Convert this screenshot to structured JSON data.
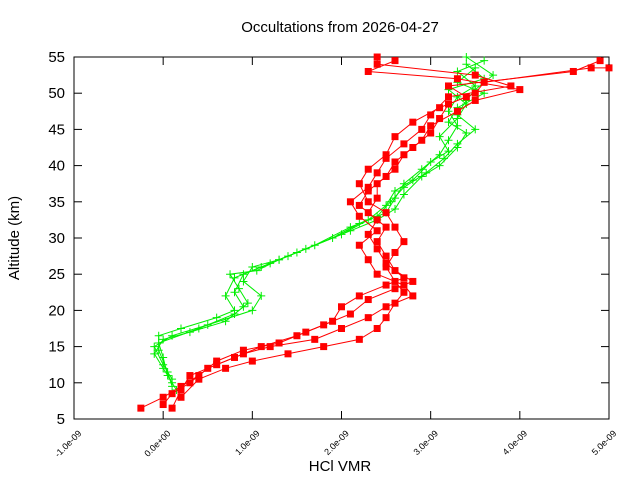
{
  "chart_data": {
    "type": "line",
    "title": "Occultations from 2026-04-27",
    "xlabel": "HCl VMR",
    "ylabel": "Altitude (km)",
    "xlim": [
      -1e-09,
      5e-09
    ],
    "ylim": [
      5,
      55
    ],
    "x_ticks": [
      -1e-09,
      0,
      1e-09,
      2e-09,
      3e-09,
      4e-09,
      5e-09
    ],
    "x_tick_labels": [
      "-1.0e-09",
      "0.0e+00",
      "1.0e-09",
      "2.0e-09",
      "3.0e-09",
      "4.0e-09",
      "5.0e-09"
    ],
    "y_ticks": [
      5,
      10,
      15,
      20,
      25,
      30,
      35,
      40,
      45,
      50,
      55
    ],
    "y_tick_labels": [
      "5",
      "10",
      "15",
      "20",
      "25",
      "30",
      "35",
      "40",
      "45",
      "50",
      "55"
    ],
    "grid": false,
    "legend": "none",
    "series": [
      {
        "color": "#00ee00",
        "marker": "plus",
        "profiles": [
          [
            [
              1e-10,
              9.5
            ],
            [
              5e-11,
              11.5
            ],
            [
              -5e-11,
              14.5
            ],
            [
              -5e-11,
              16.5
            ],
            [
              2e-10,
              17.5
            ],
            [
              6e-10,
              19.0
            ],
            [
              8e-10,
              20.0
            ],
            [
              7e-10,
              22.0
            ],
            [
              8e-10,
              24.5
            ],
            [
              1.1e-09,
              26.0
            ],
            [
              1.4e-09,
              27.5
            ],
            [
              1.9e-09,
              30.0
            ],
            [
              2.2e-09,
              32.0
            ],
            [
              2.5e-09,
              33.5
            ],
            [
              2.6e-09,
              35.5
            ],
            [
              2.7e-09,
              37.5
            ],
            [
              2.9e-09,
              39.5
            ],
            [
              3.1e-09,
              41.5
            ],
            [
              3.2e-09,
              43.5
            ],
            [
              3.3e-09,
              45.5
            ],
            [
              3.2e-09,
              47.5
            ],
            [
              3.3e-09,
              49.5
            ],
            [
              3.5e-09,
              51.0
            ],
            [
              3.3e-09,
              53.0
            ],
            [
              3.6e-09,
              54.5
            ]
          ],
          [
            [
              1e-10,
              10.0
            ],
            [
              0.0,
              12.0
            ],
            [
              -1e-10,
              14.0
            ],
            [
              0.0,
              16.0
            ],
            [
              3e-10,
              17.0
            ],
            [
              7e-10,
              18.5
            ],
            [
              9e-10,
              20.5
            ],
            [
              8e-10,
              22.5
            ],
            [
              9e-10,
              25.0
            ],
            [
              1.2e-09,
              26.5
            ],
            [
              1.5e-09,
              28.0
            ],
            [
              2e-09,
              30.5
            ],
            [
              2.3e-09,
              32.5
            ],
            [
              2.5e-09,
              34.5
            ],
            [
              2.6e-09,
              36.5
            ],
            [
              2.8e-09,
              38.0
            ],
            [
              3e-09,
              40.5
            ],
            [
              3.2e-09,
              42.0
            ],
            [
              3.1e-09,
              44.0
            ],
            [
              3.3e-09,
              46.5
            ],
            [
              3.4e-09,
              48.5
            ],
            [
              3.2e-09,
              50.5
            ],
            [
              3.6e-09,
              52.0
            ],
            [
              3.4e-09,
              54.0
            ]
          ],
          [
            [
              1.5e-10,
              9.0
            ],
            [
              5e-11,
              11.0
            ],
            [
              0.0,
              13.5
            ],
            [
              -5e-11,
              15.5
            ],
            [
              4e-10,
              17.5
            ],
            [
              8e-10,
              19.5
            ],
            [
              9.5e-10,
              21.0
            ],
            [
              8.5e-10,
              23.0
            ],
            [
              7.5e-10,
              25.0
            ],
            [
              1.05e-09,
              25.5
            ],
            [
              1.3e-09,
              27.0
            ],
            [
              1.7e-09,
              29.0
            ],
            [
              2.1e-09,
              31.5
            ],
            [
              2.4e-09,
              33.0
            ],
            [
              2.55e-09,
              35.0
            ],
            [
              2.7e-09,
              37.0
            ],
            [
              2.95e-09,
              39.0
            ],
            [
              3.15e-09,
              41.0
            ],
            [
              3.3e-09,
              43.0
            ],
            [
              3.5e-09,
              45.0
            ],
            [
              3.3e-09,
              47.0
            ],
            [
              3.4e-09,
              49.0
            ],
            [
              3.5e-09,
              50.5
            ],
            [
              3.7e-09,
              52.5
            ],
            [
              3.4e-09,
              55.0
            ]
          ],
          [
            [
              1e-10,
              10.5
            ],
            [
              0.0,
              12.5
            ],
            [
              -1e-10,
              15.0
            ],
            [
              1e-10,
              16.5
            ],
            [
              5e-10,
              18.0
            ],
            [
              1e-09,
              20.0
            ],
            [
              1.1e-09,
              22.0
            ],
            [
              9e-10,
              24.0
            ],
            [
              1e-09,
              26.0
            ],
            [
              1.3e-09,
              27.0
            ],
            [
              1.6e-09,
              28.5
            ],
            [
              2.1e-09,
              31.0
            ],
            [
              2.4e-09,
              32.5
            ],
            [
              2.6e-09,
              34.0
            ],
            [
              2.7e-09,
              36.0
            ],
            [
              2.9e-09,
              38.5
            ],
            [
              3.1e-09,
              40.0
            ],
            [
              3.3e-09,
              42.5
            ],
            [
              3.4e-09,
              44.5
            ],
            [
              3.2e-09,
              46.0
            ],
            [
              3.3e-09,
              48.0
            ],
            [
              3.6e-09,
              50.0
            ],
            [
              3.3e-09,
              51.5
            ],
            [
              3.5e-09,
              53.5
            ]
          ]
        ]
      },
      {
        "color": "#ff0000",
        "marker": "square",
        "profiles": [
          [
            [
              -2.5e-10,
              6.5
            ],
            [
              0.0,
              8.0
            ],
            [
              2e-10,
              9.5
            ],
            [
              4e-10,
              11.0
            ],
            [
              6e-10,
              13.0
            ],
            [
              9e-10,
              14.5
            ],
            [
              1.3e-09,
              15.5
            ],
            [
              1.6e-09,
              17.0
            ],
            [
              1.9e-09,
              18.5
            ],
            [
              2e-09,
              20.5
            ],
            [
              2.2e-09,
              22.0
            ],
            [
              2.5e-09,
              23.5
            ],
            [
              2.7e-09,
              24.5
            ],
            [
              2.5e-09,
              26.5
            ],
            [
              2.4e-09,
              28.5
            ],
            [
              2.3e-09,
              30.5
            ],
            [
              2.4e-09,
              32.5
            ],
            [
              2.2e-09,
              34.5
            ],
            [
              2.3e-09,
              36.5
            ],
            [
              2.5e-09,
              38.5
            ],
            [
              2.6e-09,
              40.5
            ],
            [
              2.8e-09,
              42.5
            ],
            [
              3e-09,
              44.5
            ],
            [
              3.1e-09,
              46.5
            ],
            [
              3.2e-09,
              48.5
            ],
            [
              3.5e-09,
              50.0
            ],
            [
              3.6e-09,
              51.5
            ],
            [
              4.8e-09,
              53.5
            ],
            [
              5e-09,
              53.5
            ]
          ],
          [
            [
              0.0,
              7.0
            ],
            [
              1e-10,
              8.5
            ],
            [
              3e-10,
              10.0
            ],
            [
              5e-10,
              12.0
            ],
            [
              8e-10,
              13.5
            ],
            [
              1.1e-09,
              15.0
            ],
            [
              1.5e-09,
              16.5
            ],
            [
              1.8e-09,
              18.0
            ],
            [
              2.1e-09,
              19.5
            ],
            [
              2.3e-09,
              21.5
            ],
            [
              2.6e-09,
              23.0
            ],
            [
              2.8e-09,
              24.0
            ],
            [
              2.6e-09,
              25.5
            ],
            [
              2.5e-09,
              27.5
            ],
            [
              2.4e-09,
              29.5
            ],
            [
              2.5e-09,
              31.5
            ],
            [
              2.3e-09,
              33.5
            ],
            [
              2.4e-09,
              35.5
            ],
            [
              2.4e-09,
              37.5
            ],
            [
              2.6e-09,
              39.5
            ],
            [
              2.7e-09,
              41.5
            ],
            [
              2.9e-09,
              43.5
            ],
            [
              3e-09,
              45.5
            ],
            [
              3.3e-09,
              47.5
            ],
            [
              3.5e-09,
              49.0
            ],
            [
              4e-09,
              50.5
            ],
            [
              3.3e-09,
              52.0
            ],
            [
              2.3e-09,
              53.0
            ],
            [
              2.6e-09,
              54.5
            ]
          ],
          [
            [
              1e-10,
              6.5
            ],
            [
              2e-10,
              9.0
            ],
            [
              3e-10,
              11.0
            ],
            [
              6e-10,
              12.5
            ],
            [
              9e-10,
              14.0
            ],
            [
              1.2e-09,
              15.0
            ],
            [
              1.7e-09,
              16.0
            ],
            [
              2e-09,
              17.5
            ],
            [
              2.3e-09,
              19.0
            ],
            [
              2.5e-09,
              20.5
            ],
            [
              2.8e-09,
              22.0
            ],
            [
              2.7e-09,
              23.5
            ],
            [
              2.4e-09,
              25.0
            ],
            [
              2.3e-09,
              27.0
            ],
            [
              2.2e-09,
              29.0
            ],
            [
              2.4e-09,
              31.0
            ],
            [
              2.2e-09,
              33.0
            ],
            [
              2.1e-09,
              35.0
            ],
            [
              2.3e-09,
              37.0
            ],
            [
              2.4e-09,
              39.0
            ],
            [
              2.5e-09,
              41.0
            ],
            [
              2.7e-09,
              43.0
            ],
            [
              2.9e-09,
              45.0
            ],
            [
              3e-09,
              47.0
            ],
            [
              3.2e-09,
              49.5
            ],
            [
              3.9e-09,
              51.0
            ],
            [
              3.5e-09,
              52.5
            ],
            [
              2.4e-09,
              54.0
            ],
            [
              2.4e-09,
              55.0
            ]
          ],
          [
            [
              2e-10,
              8.0
            ],
            [
              4e-10,
              10.5
            ],
            [
              7e-10,
              12.0
            ],
            [
              1e-09,
              13.0
            ],
            [
              1.4e-09,
              14.0
            ],
            [
              1.8e-09,
              15.0
            ],
            [
              2.2e-09,
              16.0
            ],
            [
              2.4e-09,
              17.5
            ],
            [
              2.5e-09,
              19.0
            ],
            [
              2.6e-09,
              21.0
            ],
            [
              2.7e-09,
              22.5
            ],
            [
              2.6e-09,
              24.0
            ],
            [
              2.5e-09,
              26.0
            ],
            [
              2.6e-09,
              28.0
            ],
            [
              2.7e-09,
              29.5
            ],
            [
              2.6e-09,
              31.5
            ],
            [
              2.5e-09,
              33.5
            ],
            [
              2.3e-09,
              35.0
            ],
            [
              2.2e-09,
              37.5
            ],
            [
              2.3e-09,
              39.5
            ],
            [
              2.5e-09,
              41.5
            ],
            [
              2.6e-09,
              44.0
            ],
            [
              2.8e-09,
              46.0
            ],
            [
              3.1e-09,
              48.0
            ],
            [
              3.4e-09,
              49.5
            ],
            [
              3.2e-09,
              51.0
            ],
            [
              4.6e-09,
              53.0
            ],
            [
              4.9e-09,
              54.5
            ]
          ]
        ]
      }
    ]
  }
}
